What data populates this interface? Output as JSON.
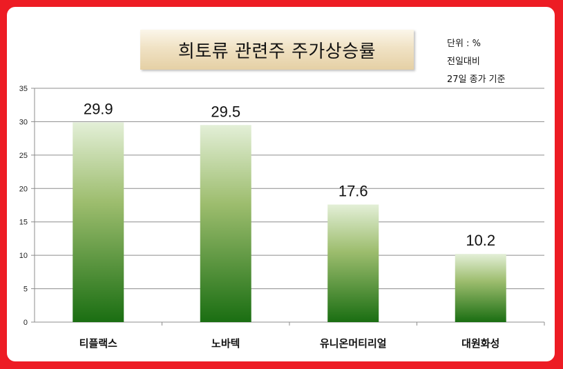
{
  "title": "희토류 관련주 주가상승률",
  "notes": [
    "단위 : %",
    "전일대비",
    "27일 종가 기준"
  ],
  "colors": {
    "frame": "#ed1c24",
    "bar_top": "#e3efd7",
    "bar_mid": "#9dbd6e",
    "bar_bottom": "#1a6e12"
  },
  "chart_data": {
    "type": "bar",
    "title": "희토류 관련주 주가상승률",
    "categories": [
      "티플랙스",
      "노바텍",
      "유니온머티리얼",
      "대원화성"
    ],
    "values": [
      29.9,
      29.5,
      17.6,
      10.2
    ],
    "data_labels": [
      "29.9",
      "29.5",
      "17.6",
      "10.2"
    ],
    "ylim": [
      0,
      35
    ],
    "yticks": [
      0,
      5,
      10,
      15,
      20,
      25,
      30,
      35
    ],
    "grid": true,
    "legend": "none"
  }
}
